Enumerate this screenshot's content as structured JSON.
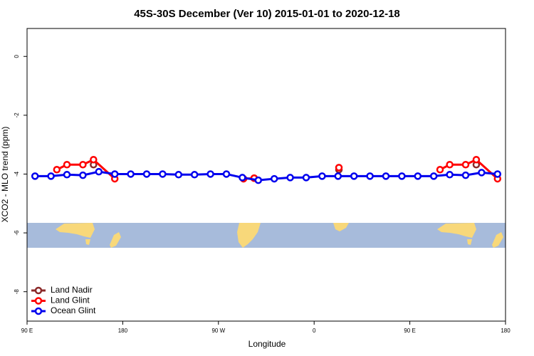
{
  "chart_data": {
    "type": "line",
    "title": "45S-30S December (Ver 10)   2015-01-01 to 2020-12-18",
    "x_label": "Longitude",
    "y_label": "XCO2 - MLO trend (ppm)",
    "xlim": [
      90,
      540
    ],
    "ylim": [
      -9,
      0.95
    ],
    "xticks": [
      {
        "value": 90,
        "label": "90 E"
      },
      {
        "value": 180,
        "label": "180"
      },
      {
        "value": 270,
        "label": "90 W"
      },
      {
        "value": 360,
        "label": "0"
      },
      {
        "value": 450,
        "label": "90 E"
      },
      {
        "value": 540,
        "label": "180"
      }
    ],
    "yticks": [
      0,
      -2,
      -4,
      -6,
      -8
    ],
    "legend": "bottom-left",
    "series": [
      {
        "name": "Land Nadir",
        "color": "#8b2a2a",
        "x": [
          152.5,
          null,
          303.6,
          null,
          383.3,
          null,
          512.5
        ],
        "values": [
          -3.68,
          null,
          -4.14,
          null,
          -3.85,
          null,
          -3.68
        ]
      },
      {
        "name": "Land Glint",
        "color": "#ff0000",
        "x": [
          118,
          127.5,
          142.5,
          152.5,
          172.5,
          null,
          293.6,
          303.6,
          null,
          383.3,
          null,
          478.4,
          487.5,
          502.5,
          512.5,
          532.5
        ],
        "values": [
          -3.85,
          -3.68,
          -3.68,
          -3.51,
          -4.16,
          null,
          -4.16,
          -4.14,
          null,
          -3.78,
          null,
          -3.85,
          -3.68,
          -3.68,
          -3.51,
          -4.16
        ]
      },
      {
        "name": "Ocean Glint",
        "color": "#0000ee",
        "x": [
          97.5,
          112.5,
          127.5,
          142.5,
          157.5,
          172.5,
          187.5,
          202.5,
          217.5,
          232.5,
          247.5,
          262.5,
          277.5,
          292.5,
          307.5,
          322.5,
          337.5,
          352.5,
          367.5,
          382.5,
          397.5,
          412.5,
          427.5,
          442.5,
          457.5,
          472.5,
          487.5,
          502.5,
          517.5,
          532.5
        ],
        "values": [
          -4.07,
          -4.07,
          -4.02,
          -4.04,
          -3.92,
          -4.0,
          -4.0,
          -4.0,
          -4.0,
          -4.02,
          -4.02,
          -4.0,
          -4.0,
          -4.12,
          -4.21,
          -4.16,
          -4.12,
          -4.12,
          -4.07,
          -4.07,
          -4.07,
          -4.07,
          -4.07,
          -4.07,
          -4.07,
          -4.07,
          -4.02,
          -4.04,
          -3.95,
          -4.0
        ]
      }
    ]
  }
}
